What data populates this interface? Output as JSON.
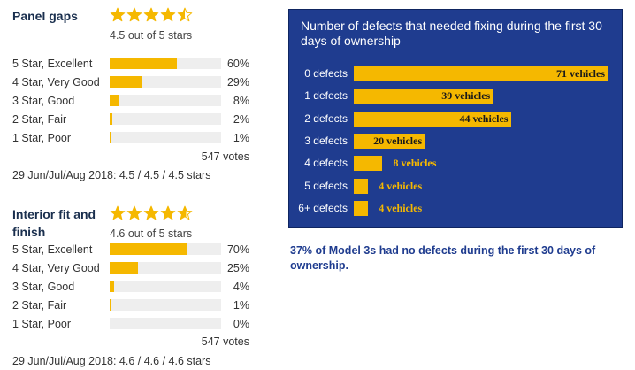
{
  "ratings": [
    {
      "title": "Panel gaps",
      "stars_value": 4.5,
      "stars_text": "4.5 out of 5 stars",
      "rows": [
        {
          "label": "5 Star, Excellent",
          "pct": "60%",
          "value": 60
        },
        {
          "label": "4 Star, Very Good",
          "pct": "29%",
          "value": 29
        },
        {
          "label": "3 Star, Good",
          "pct": "8%",
          "value": 8
        },
        {
          "label": "2 Star, Fair",
          "pct": "2%",
          "value": 2
        },
        {
          "label": "1 Star, Poor",
          "pct": "1%",
          "value": 1
        }
      ],
      "votes": "547 votes",
      "summary": "29 Jun/Jul/Aug 2018: 4.5 / 4.5 / 4.5 stars"
    },
    {
      "title": "Interior fit and finish",
      "stars_value": 4.6,
      "stars_text": "4.6 out of 5 stars",
      "rows": [
        {
          "label": "5 Star, Excellent",
          "pct": "70%",
          "value": 70
        },
        {
          "label": "4 Star, Very Good",
          "pct": "25%",
          "value": 25
        },
        {
          "label": "3 Star, Good",
          "pct": "4%",
          "value": 4
        },
        {
          "label": "2 Star, Fair",
          "pct": "1%",
          "value": 1
        },
        {
          "label": "1 Star, Poor",
          "pct": "0%",
          "value": 0
        }
      ],
      "votes": "547 votes",
      "summary": "29 Jun/Jul/Aug 2018: 4.6 / 4.6 / 4.6 stars"
    }
  ],
  "colors": {
    "star_fill": "#f5b800",
    "bar_fill": "#f5b800",
    "chart_bg": "#1f3c8f",
    "caption": "#1f3c8f"
  },
  "chart_data": {
    "type": "bar",
    "title": "Number of defects that needed fixing during the first 30 days of ownership",
    "categories": [
      "0 defects",
      "1 defects",
      "2 defects",
      "3 defects",
      "4 defects",
      "5 defects",
      "6+ defects"
    ],
    "values": [
      71,
      39,
      44,
      20,
      8,
      4,
      4
    ],
    "value_labels": [
      "71 vehicles",
      "39 vehicles",
      "44 vehicles",
      "20 vehicles",
      "8 vehicles",
      "4 vehicles",
      "4 vehicles"
    ],
    "xlim": [
      0,
      71
    ],
    "xlabel": "",
    "ylabel": ""
  },
  "chart_caption": "37% of Model 3s had no defects during the first 30 days of ownership."
}
